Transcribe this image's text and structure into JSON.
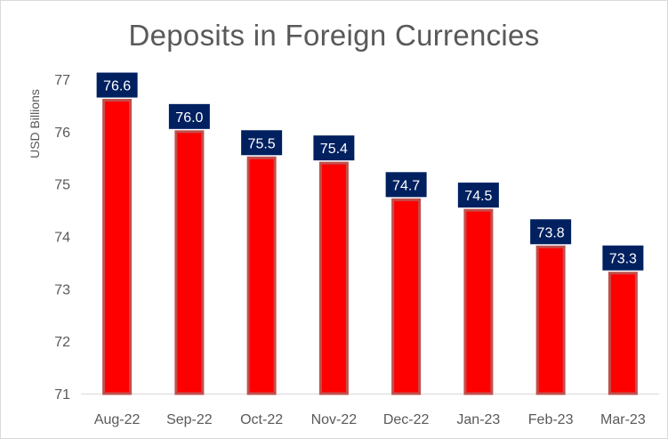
{
  "chart_data": {
    "type": "bar",
    "title": "Deposits in Foreign Currencies",
    "xlabel": "",
    "ylabel": "USD Billions",
    "categories": [
      "Aug-22",
      "Sep-22",
      "Oct-22",
      "Nov-22",
      "Dec-22",
      "Jan-23",
      "Feb-23",
      "Mar-23"
    ],
    "values": [
      76.6,
      76.0,
      75.5,
      75.4,
      74.7,
      74.5,
      73.8,
      73.3
    ],
    "data_labels": [
      "76.6",
      "76.0",
      "75.5",
      "75.4",
      "74.7",
      "74.5",
      "73.8",
      "73.3"
    ],
    "ylim": [
      71,
      77
    ],
    "yticks": [
      "71",
      "72",
      "73",
      "74",
      "75",
      "76",
      "77"
    ],
    "grid": false,
    "legend": "none",
    "colors": {
      "bar_fill": "#ff0000",
      "bar_border": "#c0504d",
      "label_bg": "#002060",
      "label_text": "#ffffff",
      "axis_text": "#595959",
      "axis_line": "#d9d9d9"
    }
  }
}
